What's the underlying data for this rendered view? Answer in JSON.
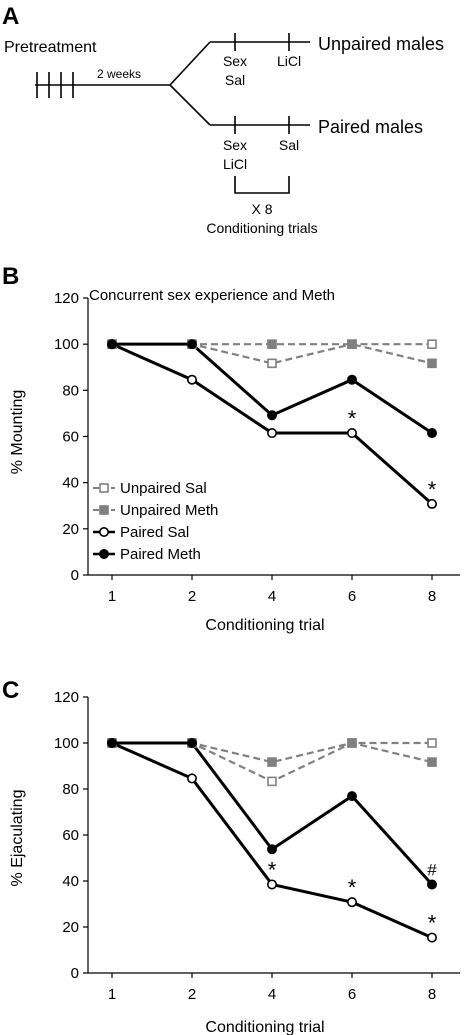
{
  "panel_a": {
    "letter": "A",
    "pretreatment": "Pretreatment",
    "duration": "2 weeks",
    "unpaired_label": "Unpaired males",
    "paired_label": "Paired males",
    "unpaired_trial_1": [
      "Sex",
      "Sal"
    ],
    "unpaired_trial_2": "LiCl",
    "paired_trial_1": [
      "Sex",
      "LiCl"
    ],
    "paired_trial_2": "Sal",
    "repeat": "X 8",
    "repeat_caption": "Conditioning trials"
  },
  "chart_data": [
    {
      "panel": "B",
      "type": "line",
      "title": "Concurrent sex experience and Meth",
      "xlabel": "Conditioning trial",
      "ylabel": "% Mounting",
      "categories": [
        "1",
        "2",
        "4",
        "6",
        "8"
      ],
      "ylim": [
        0,
        120
      ],
      "yticks": [
        "0",
        "20",
        "40",
        "60",
        "80",
        "100",
        "120"
      ],
      "grid": false,
      "legend_position": "lower-left",
      "series": [
        {
          "name": "Unpaired Sal",
          "values": [
            100,
            100,
            91.7,
            100,
            100
          ],
          "color": "#808080",
          "dashed": true,
          "marker": "square-open"
        },
        {
          "name": "Unpaired Meth",
          "values": [
            100,
            100,
            100,
            100,
            91.7
          ],
          "color": "#808080",
          "dashed": true,
          "marker": "square-filled"
        },
        {
          "name": "Paired Sal",
          "values": [
            100,
            84.6,
            61.5,
            61.5,
            30.8
          ],
          "color": "#000000",
          "dashed": false,
          "marker": "circle-open"
        },
        {
          "name": "Paired Meth",
          "values": [
            100,
            100,
            69.2,
            84.6,
            61.5
          ],
          "color": "#000000",
          "dashed": false,
          "marker": "circle-filled"
        }
      ],
      "annotations": [
        {
          "text": "*",
          "category": "6",
          "value": 61.5
        },
        {
          "text": "*",
          "category": "8",
          "value": 30.8
        }
      ]
    },
    {
      "panel": "C",
      "type": "line",
      "title": "",
      "xlabel": "Conditioning trial",
      "ylabel": "% Ejaculating",
      "categories": [
        "1",
        "2",
        "4",
        "6",
        "8"
      ],
      "ylim": [
        0,
        120
      ],
      "yticks": [
        "0",
        "20",
        "40",
        "60",
        "80",
        "100",
        "120"
      ],
      "grid": false,
      "legend_position": "",
      "series": [
        {
          "values": [
            100,
            100,
            83.3,
            100,
            100
          ],
          "color": "#808080",
          "dashed": true,
          "marker": "square-open"
        },
        {
          "values": [
            100,
            100,
            91.7,
            100,
            91.7
          ],
          "color": "#808080",
          "dashed": true,
          "marker": "square-filled"
        },
        {
          "values": [
            100,
            84.6,
            38.5,
            30.8,
            15.4
          ],
          "color": "#000000",
          "dashed": false,
          "marker": "circle-open"
        },
        {
          "values": [
            100,
            100,
            53.8,
            76.9,
            38.5
          ],
          "color": "#000000",
          "dashed": false,
          "marker": "circle-filled"
        }
      ],
      "annotations": [
        {
          "text": "*",
          "category": "4",
          "value": 38.5
        },
        {
          "text": "*",
          "category": "6",
          "value": 30.8
        },
        {
          "text": "*",
          "category": "8",
          "value": 15.4
        },
        {
          "text": "#",
          "category": "8",
          "value": 38.5
        }
      ]
    }
  ]
}
